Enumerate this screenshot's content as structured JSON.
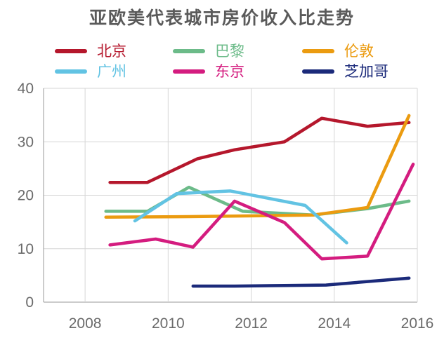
{
  "title": "亚欧美代表城市房价收入比走势",
  "chart_data": {
    "type": "line",
    "title": "亚欧美代表城市房价收入比走势",
    "xlabel": "",
    "ylabel": "",
    "xlim": [
      2007,
      2016
    ],
    "ylim": [
      0,
      40
    ],
    "xticks": [
      "2008",
      "2010",
      "2012",
      "2014",
      "2016"
    ],
    "yticks": [
      "0",
      "10",
      "20",
      "30",
      "40"
    ],
    "grid": true,
    "legend_position": "top",
    "series": [
      {
        "name": "北京",
        "color": "#b5172c",
        "points": [
          [
            2008.6,
            22.4
          ],
          [
            2009.5,
            22.4
          ],
          [
            2010.7,
            26.8
          ],
          [
            2011.6,
            28.5
          ],
          [
            2012.8,
            30.0
          ],
          [
            2013.7,
            34.4
          ],
          [
            2014.8,
            32.9
          ],
          [
            2015.8,
            33.6
          ]
        ]
      },
      {
        "name": "巴黎",
        "color": "#6cbb89",
        "points": [
          [
            2008.5,
            17.0
          ],
          [
            2009.5,
            17.0
          ],
          [
            2010.5,
            21.5
          ],
          [
            2011.8,
            17.0
          ],
          [
            2013.5,
            16.3
          ],
          [
            2014.8,
            17.5
          ],
          [
            2015.8,
            18.9
          ]
        ]
      },
      {
        "name": "伦敦",
        "color": "#eb9b10",
        "points": [
          [
            2008.5,
            15.9
          ],
          [
            2010.5,
            16.0
          ],
          [
            2012.5,
            16.2
          ],
          [
            2013.5,
            16.3
          ],
          [
            2014.8,
            17.7
          ],
          [
            2015.8,
            34.9
          ]
        ]
      },
      {
        "name": "广州",
        "color": "#62c3e3",
        "points": [
          [
            2009.2,
            15.2
          ],
          [
            2010.2,
            20.3
          ],
          [
            2011.5,
            20.8
          ],
          [
            2013.3,
            18.1
          ],
          [
            2014.3,
            11.1
          ]
        ]
      },
      {
        "name": "东京",
        "color": "#d41c7f",
        "points": [
          [
            2008.6,
            10.7
          ],
          [
            2009.7,
            11.8
          ],
          [
            2010.6,
            10.3
          ],
          [
            2011.6,
            18.9
          ],
          [
            2012.8,
            14.9
          ],
          [
            2013.7,
            8.1
          ],
          [
            2014.8,
            8.6
          ],
          [
            2015.9,
            25.8
          ]
        ]
      },
      {
        "name": "芝加哥",
        "color": "#1b2a7a",
        "points": [
          [
            2010.6,
            3.0
          ],
          [
            2011.6,
            3.0
          ],
          [
            2013.8,
            3.2
          ],
          [
            2015.8,
            4.5
          ]
        ]
      }
    ]
  }
}
